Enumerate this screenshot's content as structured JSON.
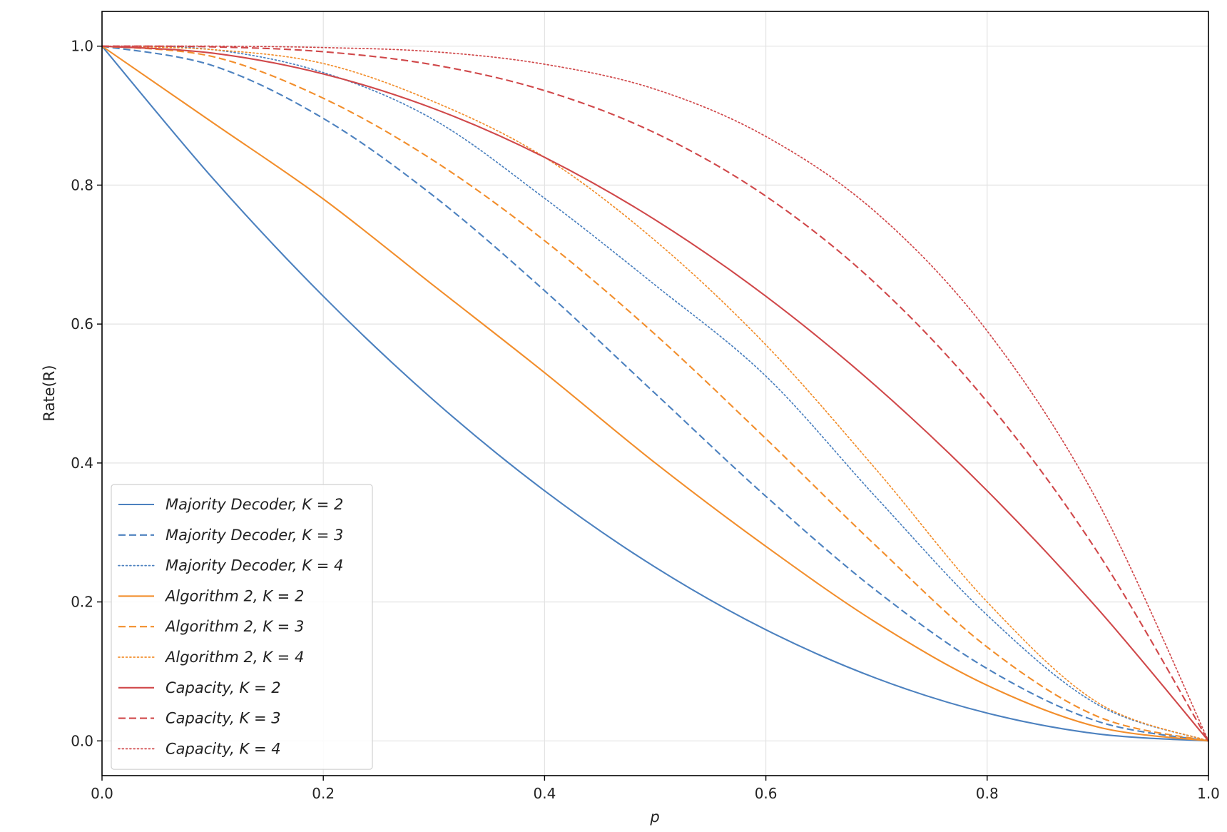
{
  "chart_data": {
    "type": "line",
    "title": "",
    "xlabel": "p",
    "ylabel": "Rate(R)",
    "xlim": [
      0.0,
      1.0
    ],
    "ylim": [
      -0.05,
      1.05
    ],
    "xticks": [
      0.0,
      0.2,
      0.4,
      0.6,
      0.8,
      1.0
    ],
    "yticks": [
      0.0,
      0.2,
      0.4,
      0.6,
      0.8,
      1.0
    ],
    "xtick_labels": [
      "0.0",
      "0.2",
      "0.4",
      "0.6",
      "0.8",
      "1.0"
    ],
    "ytick_labels": [
      "0.0",
      "0.2",
      "0.4",
      "0.6",
      "0.8",
      "1.0"
    ],
    "grid": true,
    "legend_position": "lower-left",
    "x": [
      0.0,
      0.1,
      0.2,
      0.3,
      0.4,
      0.5,
      0.6,
      0.7,
      0.8,
      0.9,
      1.0
    ],
    "series": [
      {
        "name": "Majority Decoder, K = 2",
        "color": "#4c81bf",
        "style": "solid",
        "values": [
          1.0,
          0.81,
          0.64,
          0.49,
          0.36,
          0.25,
          0.16,
          0.09,
          0.04,
          0.01,
          0.0
        ]
      },
      {
        "name": "Majority Decoder, K = 3",
        "color": "#4c81bf",
        "style": "dashed",
        "values": [
          1.0,
          0.972,
          0.896,
          0.784,
          0.648,
          0.5,
          0.352,
          0.216,
          0.104,
          0.028,
          0.0
        ]
      },
      {
        "name": "Majority Decoder, K = 4",
        "color": "#4c81bf",
        "style": "dotted",
        "values": [
          1.0,
          0.995,
          0.962,
          0.894,
          0.781,
          0.656,
          0.525,
          0.35,
          0.181,
          0.052,
          0.0
        ]
      },
      {
        "name": "Algorithm 2, K = 2",
        "color": "#f28e2c",
        "style": "solid",
        "values": [
          1.0,
          0.89,
          0.78,
          0.655,
          0.53,
          0.4,
          0.28,
          0.17,
          0.08,
          0.02,
          0.0
        ]
      },
      {
        "name": "Algorithm 2, K = 3",
        "color": "#f28e2c",
        "style": "dashed",
        "values": [
          1.0,
          0.985,
          0.925,
          0.835,
          0.72,
          0.585,
          0.435,
          0.28,
          0.135,
          0.035,
          0.0
        ]
      },
      {
        "name": "Algorithm 2, K = 4",
        "color": "#f28e2c",
        "style": "dotted",
        "values": [
          1.0,
          0.995,
          0.975,
          0.92,
          0.84,
          0.72,
          0.57,
          0.39,
          0.2,
          0.055,
          0.0
        ]
      },
      {
        "name": "Capacity, K = 2",
        "color": "#d0484a",
        "style": "solid",
        "values": [
          1.0,
          0.99,
          0.96,
          0.91,
          0.84,
          0.75,
          0.64,
          0.51,
          0.36,
          0.19,
          0.0
        ]
      },
      {
        "name": "Capacity, K = 3",
        "color": "#d0484a",
        "style": "dashed",
        "values": [
          1.0,
          0.999,
          0.992,
          0.973,
          0.936,
          0.875,
          0.784,
          0.657,
          0.488,
          0.271,
          0.0
        ]
      },
      {
        "name": "Capacity, K = 4",
        "color": "#d0484a",
        "style": "dotted",
        "values": [
          1.0,
          1.0,
          0.998,
          0.992,
          0.974,
          0.938,
          0.87,
          0.76,
          0.59,
          0.344,
          0.0
        ]
      }
    ]
  }
}
